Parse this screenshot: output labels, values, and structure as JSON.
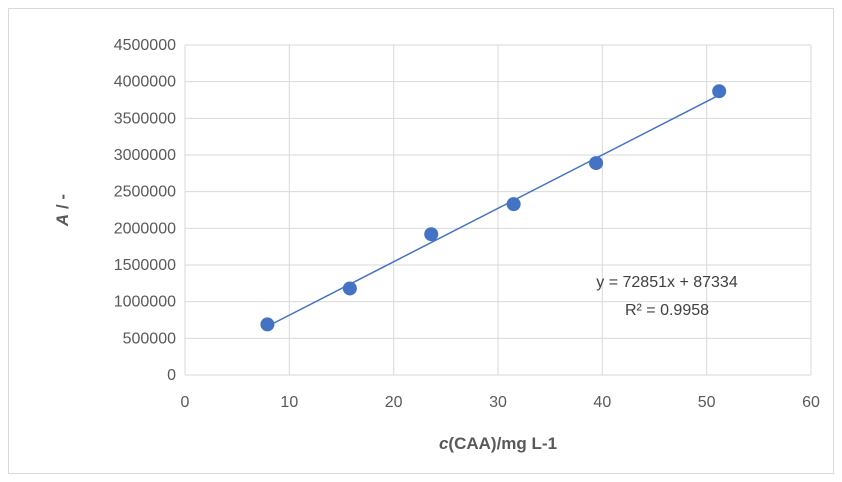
{
  "chart_data": {
    "type": "scatter",
    "xlabel_italic": "c",
    "xlabel_rest": "(CAA)/mg L-1",
    "ylabel_italic": "A",
    "ylabel_rest": " / -",
    "xlim": [
      0,
      60
    ],
    "ylim": [
      0,
      4500000
    ],
    "xticks": [
      "0",
      "10",
      "20",
      "30",
      "40",
      "50",
      "60"
    ],
    "yticks": [
      "0",
      "500000",
      "1000000",
      "1500000",
      "2000000",
      "2500000",
      "3000000",
      "3500000",
      "4000000",
      "4500000"
    ],
    "x": [
      7.9,
      15.8,
      23.6,
      31.5,
      39.4,
      51.2
    ],
    "y": [
      690000,
      1180000,
      1920000,
      2330000,
      2890000,
      3870000
    ],
    "trendline": {
      "slope": 72851,
      "intercept": 87334,
      "x_range": [
        7.9,
        51.2
      ]
    },
    "equation": "y = 72851x + 87334",
    "r_squared": "R² = 0.9958",
    "grid": true,
    "colors": {
      "marker": "#4472c4",
      "trendline": "#4472c4",
      "grid": "#d9d9d9"
    }
  }
}
